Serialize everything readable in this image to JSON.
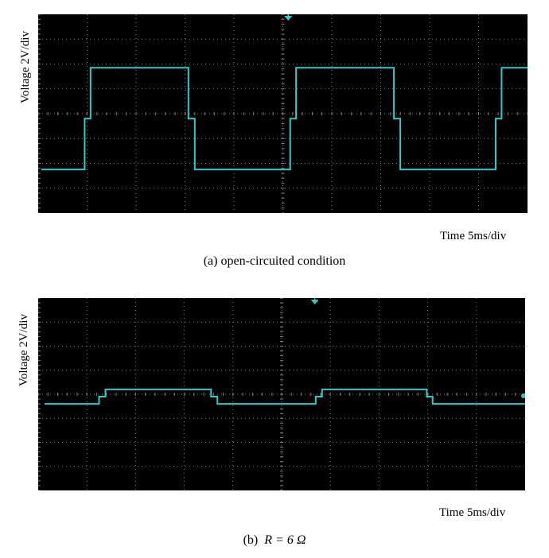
{
  "colors": {
    "background": "#000000",
    "trace": "#35c8c8",
    "grid": "#8a7a90",
    "marker": "#35c8c8"
  },
  "chart_data": [
    {
      "type": "line",
      "title": "",
      "caption": "(a) open-circuited condition",
      "ylabel": "Voltage 2V/div",
      "xlabel": "Time 5ms/div",
      "grid": true,
      "divisions": {
        "x": 10,
        "y": 8
      },
      "x_unit": "div",
      "y_unit": "div",
      "xlim": [
        0,
        10
      ],
      "ylim": [
        0,
        8
      ],
      "series": [
        {
          "x": [
            0,
            0.95,
            0.95,
            1.07,
            1.07,
            3.07,
            3.07,
            3.2,
            3.2,
            5.15,
            5.15,
            5.27,
            5.27,
            7.27,
            7.27,
            7.4,
            7.4,
            9.35,
            9.35,
            9.47,
            9.47,
            10
          ],
          "y": [
            1.75,
            1.75,
            3.8,
            3.8,
            5.85,
            5.85,
            3.8,
            3.8,
            1.75,
            1.75,
            3.8,
            3.8,
            5.85,
            5.85,
            3.8,
            3.8,
            1.75,
            1.75,
            3.8,
            3.8,
            5.85,
            5.85
          ]
        }
      ]
    },
    {
      "type": "line",
      "title": "",
      "caption_prefix": "(b)",
      "caption_math": "R = 6 Ω",
      "ylabel": "Voltage 2V/div",
      "xlabel": "Time 5ms/div",
      "grid": true,
      "divisions": {
        "x": 10,
        "y": 8
      },
      "x_unit": "div",
      "y_unit": "div",
      "xlim": [
        0,
        10
      ],
      "ylim": [
        0,
        8
      ],
      "series": [
        {
          "x": [
            0,
            1.25,
            1.25,
            1.38,
            1.38,
            3.55,
            3.55,
            3.68,
            3.68,
            5.7,
            5.7,
            5.83,
            5.83,
            7.98,
            7.98,
            8.1,
            8.1,
            10
          ],
          "y": [
            3.6,
            3.6,
            3.9,
            3.9,
            4.2,
            4.2,
            3.9,
            3.9,
            3.6,
            3.6,
            3.9,
            3.9,
            4.2,
            4.2,
            3.9,
            3.9,
            3.6,
            3.6
          ]
        }
      ]
    }
  ]
}
